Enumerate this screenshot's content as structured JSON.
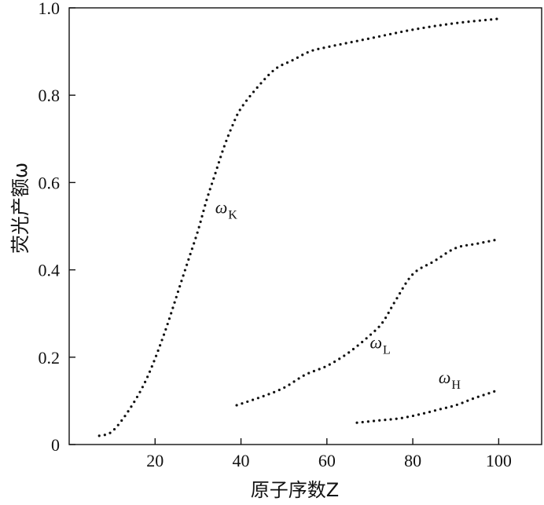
{
  "chart_data": {
    "type": "line",
    "xlabel": "原子序数Z",
    "ylabel": "荧光产额ω",
    "xlim": [
      0,
      110
    ],
    "ylim": [
      0,
      1.0
    ],
    "x_ticks": [
      20,
      40,
      60,
      80,
      100
    ],
    "x_tick_labels": [
      "20",
      "40",
      "60",
      "80",
      "100"
    ],
    "y_ticks": [
      0,
      0.2,
      0.4,
      0.6,
      0.8,
      1.0
    ],
    "y_tick_labels": [
      "0",
      "0.2",
      "0.4",
      "0.6",
      "0.8",
      "1.0"
    ],
    "grid": false,
    "line_style": "dotted",
    "series": [
      {
        "name": "ωK",
        "label_symbol": "ω",
        "label_subscript": "K",
        "label_at": [
          34,
          0.53
        ],
        "x": [
          7,
          10,
          14,
          18,
          22,
          26,
          28,
          30,
          32,
          34,
          36,
          38,
          40,
          44,
          48,
          52,
          56,
          60,
          70,
          80,
          90,
          100
        ],
        "y": [
          0.02,
          0.03,
          0.08,
          0.15,
          0.25,
          0.37,
          0.43,
          0.49,
          0.56,
          0.62,
          0.68,
          0.73,
          0.77,
          0.82,
          0.86,
          0.88,
          0.9,
          0.91,
          0.93,
          0.95,
          0.965,
          0.975
        ]
      },
      {
        "name": "ωL",
        "label_symbol": "ω",
        "label_subscript": "L",
        "label_at": [
          70,
          0.22
        ],
        "x": [
          39,
          45,
          50,
          55,
          60,
          65,
          70,
          73,
          76,
          80,
          85,
          90,
          95,
          100
        ],
        "y": [
          0.09,
          0.11,
          0.13,
          0.16,
          0.18,
          0.21,
          0.25,
          0.28,
          0.33,
          0.39,
          0.42,
          0.45,
          0.46,
          0.47
        ]
      },
      {
        "name": "ωH",
        "label_symbol": "ω",
        "label_subscript": "H",
        "label_at": [
          86,
          0.14
        ],
        "x": [
          67,
          72,
          77,
          82,
          86,
          90,
          94,
          97,
          100
        ],
        "y": [
          0.05,
          0.055,
          0.06,
          0.07,
          0.08,
          0.09,
          0.105,
          0.115,
          0.125
        ]
      }
    ]
  }
}
